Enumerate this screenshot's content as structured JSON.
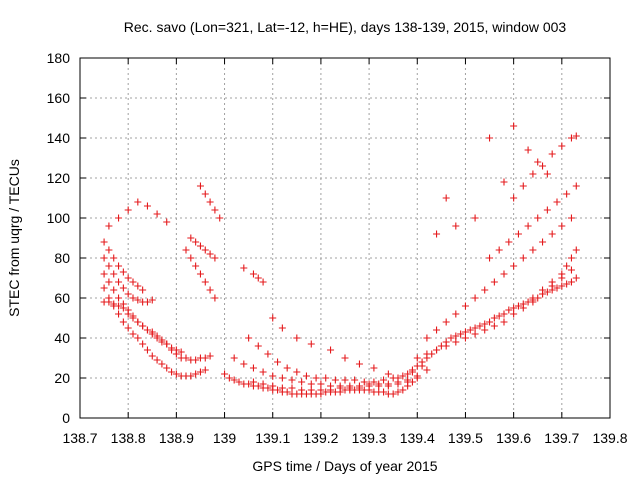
{
  "chart_data": {
    "type": "scatter",
    "title": "Rec. savo (Lon=321, Lat=-12, h=HE), days 138-139, 2015, window 003",
    "xlabel": "GPS time / Days of year 2015",
    "ylabel": "STEC from uqrg / TECUs",
    "xlim": [
      138.7,
      139.8
    ],
    "ylim": [
      0,
      180
    ],
    "xticks": [
      "138.7",
      "138.8",
      "138.9",
      "139",
      "139.1",
      "139.2",
      "139.3",
      "139.4",
      "139.5",
      "139.6",
      "139.7",
      "139.8"
    ],
    "yticks": [
      "0",
      "20",
      "40",
      "60",
      "80",
      "100",
      "120",
      "140",
      "160",
      "180"
    ],
    "grid": true,
    "marker": "+",
    "color": "#e41a1c",
    "series": [
      {
        "x": [
          138.75,
          138.76,
          138.77,
          138.78,
          138.79,
          138.8,
          138.81,
          138.82,
          138.83,
          138.84,
          138.85,
          138.86,
          138.87,
          138.88,
          138.89,
          138.9,
          138.91,
          138.92,
          138.93,
          138.94,
          138.95,
          138.96,
          138.97,
          138.75,
          138.76,
          138.77,
          138.78,
          138.79,
          138.8,
          138.81,
          138.82,
          138.83,
          138.84,
          138.85,
          138.86,
          138.87,
          138.88,
          138.89,
          138.9,
          138.91,
          138.92,
          138.93,
          138.94,
          138.95,
          138.96,
          138.75,
          138.76,
          138.77,
          138.78,
          138.79,
          138.8,
          138.81,
          138.82,
          138.83,
          138.84,
          138.85,
          138.86,
          138.87,
          138.88,
          138.89,
          138.9,
          138.91,
          138.75,
          138.76,
          138.77,
          138.78,
          138.79,
          138.8,
          138.81,
          138.82,
          138.83,
          138.84,
          138.85,
          138.75,
          138.76,
          138.77,
          138.78,
          138.79,
          138.8,
          138.81,
          138.82,
          138.83,
          138.76,
          138.78,
          138.8,
          138.82,
          138.84,
          138.86,
          138.88,
          138.92,
          138.93,
          138.94,
          138.95,
          138.96,
          138.97,
          138.98,
          138.93,
          138.94,
          138.95,
          138.96,
          138.97,
          138.98,
          138.95,
          138.96,
          138.97,
          138.98,
          138.99,
          139.0,
          139.01,
          139.02,
          139.03,
          139.04,
          139.05,
          139.06,
          139.07,
          139.08,
          139.09,
          139.1,
          139.11,
          139.12,
          139.13,
          139.14,
          139.15,
          139.16,
          139.17,
          139.18,
          139.19,
          139.2,
          139.21,
          139.22,
          139.23,
          139.24,
          139.25,
          139.26,
          139.27,
          139.28,
          139.29,
          139.3,
          139.31,
          139.32,
          139.33,
          139.34,
          139.35,
          139.36,
          139.37,
          139.38,
          139.39,
          139.4,
          139.02,
          139.04,
          139.06,
          139.08,
          139.1,
          139.12,
          139.14,
          139.16,
          139.18,
          139.2,
          139.22,
          139.24,
          139.26,
          139.28,
          139.3,
          139.32,
          139.34,
          139.36,
          139.38,
          139.4,
          139.42,
          139.05,
          139.07,
          139.09,
          139.11,
          139.13,
          139.15,
          139.17,
          139.19,
          139.21,
          139.23,
          139.25,
          139.27,
          139.29,
          139.31,
          139.33,
          139.35,
          139.37,
          139.39,
          139.41,
          139.06,
          139.08,
          139.1,
          139.12,
          139.14,
          139.16,
          139.18,
          139.2,
          139.22,
          139.24,
          139.26,
          139.28,
          139.3,
          139.32,
          139.34,
          139.36,
          139.38,
          139.04,
          139.06,
          139.07,
          139.08,
          139.1,
          139.12,
          139.15,
          139.18,
          139.22,
          139.25,
          139.28,
          139.31,
          139.34,
          139.36,
          139.38,
          139.39,
          139.4,
          139.41,
          139.42,
          139.43,
          139.44,
          139.45,
          139.46,
          139.47,
          139.48,
          139.49,
          139.5,
          139.51,
          139.52,
          139.53,
          139.54,
          139.55,
          139.56,
          139.57,
          139.58,
          139.59,
          139.6,
          139.61,
          139.62,
          139.63,
          139.64,
          139.65,
          139.66,
          139.67,
          139.68,
          139.69,
          139.7,
          139.71,
          139.72,
          139.73,
          139.4,
          139.42,
          139.44,
          139.46,
          139.48,
          139.5,
          139.52,
          139.54,
          139.56,
          139.58,
          139.6,
          139.62,
          139.64,
          139.66,
          139.68,
          139.7,
          139.72,
          139.42,
          139.44,
          139.46,
          139.48,
          139.5,
          139.52,
          139.54,
          139.56,
          139.58,
          139.6,
          139.62,
          139.64,
          139.66,
          139.68,
          139.7,
          139.72,
          139.55,
          139.57,
          139.59,
          139.61,
          139.63,
          139.65,
          139.67,
          139.69,
          139.71,
          139.73,
          139.6,
          139.62,
          139.64,
          139.66,
          139.68,
          139.7,
          139.72,
          139.73,
          139.64,
          139.66,
          139.68,
          139.7,
          139.71,
          139.72,
          139.73,
          139.44,
          139.46,
          139.48,
          139.52,
          139.55,
          139.58,
          139.6,
          139.63,
          139.65,
          139.67
        ],
        "y": [
          58,
          58,
          57,
          56,
          55,
          52,
          50,
          48,
          46,
          44,
          43,
          41,
          39,
          37,
          34,
          32,
          30,
          30,
          29,
          29,
          30,
          30,
          31,
          65,
          60,
          56,
          52,
          48,
          45,
          42,
          40,
          37,
          34,
          31,
          29,
          27,
          25,
          23,
          22,
          21,
          21,
          21,
          22,
          23,
          24,
          72,
          68,
          64,
          60,
          57,
          54,
          51,
          48,
          46,
          44,
          42,
          40,
          38,
          37,
          35,
          34,
          33,
          80,
          76,
          72,
          68,
          65,
          62,
          60,
          59,
          58,
          58,
          59,
          88,
          84,
          80,
          76,
          73,
          70,
          68,
          66,
          64,
          96,
          100,
          104,
          108,
          106,
          102,
          98,
          84,
          80,
          76,
          72,
          68,
          64,
          60,
          90,
          88,
          86,
          84,
          82,
          80,
          116,
          112,
          108,
          104,
          100,
          22,
          20,
          19,
          18,
          17,
          17,
          16,
          16,
          15,
          15,
          14,
          14,
          13,
          13,
          12,
          12,
          12,
          12,
          12,
          12,
          12,
          13,
          13,
          13,
          13,
          14,
          14,
          14,
          14,
          14,
          14,
          13,
          13,
          13,
          12,
          12,
          13,
          14,
          16,
          18,
          20,
          30,
          27,
          25,
          23,
          21,
          20,
          19,
          18,
          17,
          17,
          16,
          16,
          16,
          16,
          17,
          17,
          17,
          18,
          19,
          21,
          24,
          40,
          36,
          32,
          28,
          25,
          23,
          21,
          20,
          20,
          19,
          19,
          19,
          18,
          18,
          19,
          20,
          21,
          23,
          26,
          18,
          17,
          16,
          15,
          15,
          14,
          14,
          14,
          14,
          15,
          15,
          15,
          16,
          16,
          16,
          17,
          18,
          75,
          72,
          70,
          68,
          50,
          45,
          40,
          37,
          34,
          30,
          27,
          25,
          22,
          20,
          22,
          24,
          26,
          28,
          30,
          32,
          34,
          36,
          38,
          40,
          41,
          42,
          43,
          44,
          45,
          46,
          47,
          48,
          50,
          51,
          52,
          54,
          55,
          56,
          57,
          58,
          59,
          60,
          62,
          63,
          64,
          65,
          66,
          67,
          68,
          70,
          30,
          32,
          34,
          36,
          38,
          40,
          42,
          44,
          46,
          48,
          52,
          55,
          58,
          62,
          66,
          70,
          74,
          40,
          44,
          48,
          52,
          56,
          60,
          64,
          68,
          72,
          76,
          80,
          84,
          88,
          92,
          96,
          100,
          80,
          84,
          88,
          92,
          96,
          100,
          104,
          108,
          112,
          116,
          110,
          116,
          122,
          126,
          132,
          136,
          140,
          141,
          60,
          64,
          68,
          72,
          76,
          80,
          84,
          92,
          110,
          96,
          100,
          140,
          118,
          146,
          134,
          128,
          122
        ]
      }
    ]
  }
}
